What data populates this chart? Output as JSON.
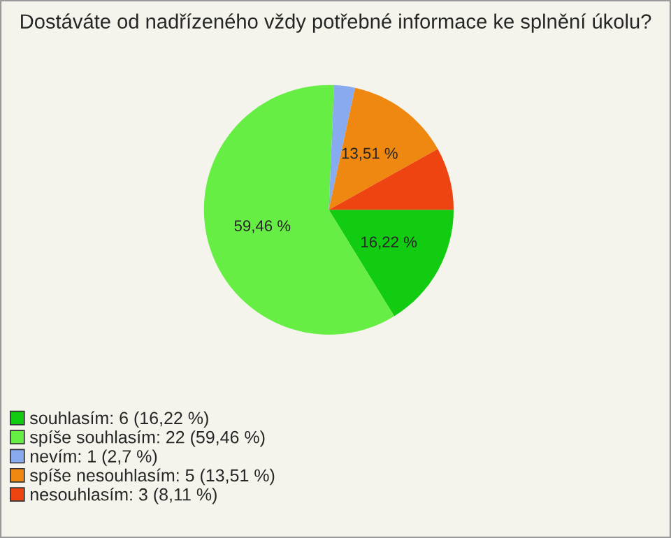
{
  "chart_data": {
    "type": "pie",
    "title": "Dostáváte od nadřízeného vždy potřebné informace ke splnění úkolu?",
    "categories": [
      "souhlasím: 6 (16,22 %)",
      "spíše souhlasím: 22 (59,46 %)",
      "nevím: 1 (2,7 %)",
      "spíše nesouhlasím: 5 (13,51 %)",
      "nesouhlasím: 3 (8,11 %)"
    ],
    "values": [
      16.22,
      59.46,
      2.7,
      13.51,
      8.11
    ],
    "colors": [
      "#11cc11",
      "#66ee44",
      "#88aaee",
      "#ee8811",
      "#ee4411"
    ],
    "value_labels": [
      "16,22 %",
      "59,46 %",
      null,
      "13,51 %",
      null
    ],
    "legend": "bottom left"
  }
}
